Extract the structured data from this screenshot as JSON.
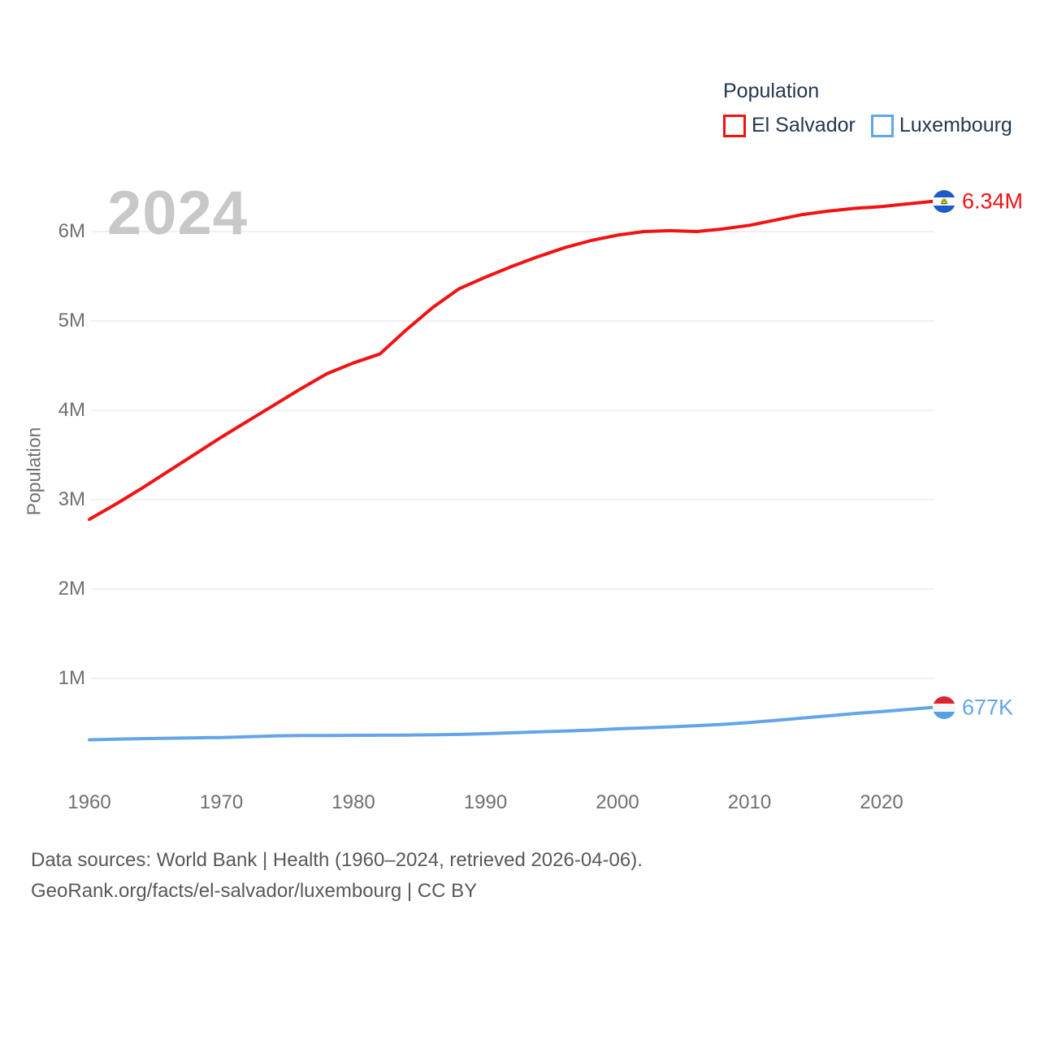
{
  "watermark": "2024",
  "legend": {
    "title": "Population",
    "items": [
      {
        "label": "El Salvador",
        "color": "#f21212"
      },
      {
        "label": "Luxembourg",
        "color": "#64a5e8"
      }
    ]
  },
  "chart_data": {
    "type": "line",
    "title": "Population",
    "xlabel": "",
    "ylabel": "Population",
    "grid": "horizontal",
    "legend_position": "top-right",
    "xlim": [
      1960,
      2024
    ],
    "ylim": [
      0,
      6600000
    ],
    "x_ticks": [
      1960,
      1970,
      1980,
      1990,
      2000,
      2010,
      2020
    ],
    "y_ticks": [
      {
        "value": 1000000,
        "label": "1M"
      },
      {
        "value": 2000000,
        "label": "2M"
      },
      {
        "value": 3000000,
        "label": "3M"
      },
      {
        "value": 4000000,
        "label": "4M"
      },
      {
        "value": 5000000,
        "label": "5M"
      },
      {
        "value": 6000000,
        "label": "6M"
      }
    ],
    "years": [
      1960,
      1962,
      1964,
      1966,
      1968,
      1970,
      1972,
      1974,
      1976,
      1978,
      1980,
      1982,
      1984,
      1986,
      1988,
      1990,
      1992,
      1994,
      1996,
      1998,
      2000,
      2002,
      2004,
      2006,
      2008,
      2010,
      2012,
      2014,
      2016,
      2018,
      2020,
      2022,
      2024
    ],
    "series": [
      {
        "name": "El Salvador",
        "color": "#f21212",
        "end_label": "6.34M",
        "flag_icon": "el-salvador-flag-icon",
        "values": [
          2780000,
          2950000,
          3130000,
          3320000,
          3510000,
          3700000,
          3880000,
          4060000,
          4240000,
          4410000,
          4530000,
          4630000,
          4900000,
          5150000,
          5360000,
          5490000,
          5610000,
          5720000,
          5820000,
          5900000,
          5960000,
          6000000,
          6010000,
          6000000,
          6030000,
          6070000,
          6130000,
          6190000,
          6230000,
          6260000,
          6280000,
          6310000,
          6340000
        ]
      },
      {
        "name": "Luxembourg",
        "color": "#64a5e8",
        "end_label": "677K",
        "flag_icon": "luxembourg-flag-icon",
        "values": [
          314000,
          320000,
          326000,
          331000,
          335000,
          339000,
          348000,
          357000,
          361000,
          362000,
          364000,
          365000,
          366000,
          369000,
          374000,
          382000,
          392000,
          402000,
          412000,
          422000,
          436000,
          446000,
          458000,
          472000,
          486000,
          507000,
          531000,
          556000,
          582000,
          608000,
          630000,
          654000,
          677000
        ]
      }
    ]
  },
  "footer": {
    "line1": "Data sources: World Bank | Health (1960–2024, retrieved 2026-04-06).",
    "line2": "GeoRank.org/facts/el-salvador/luxembourg | CC BY"
  }
}
